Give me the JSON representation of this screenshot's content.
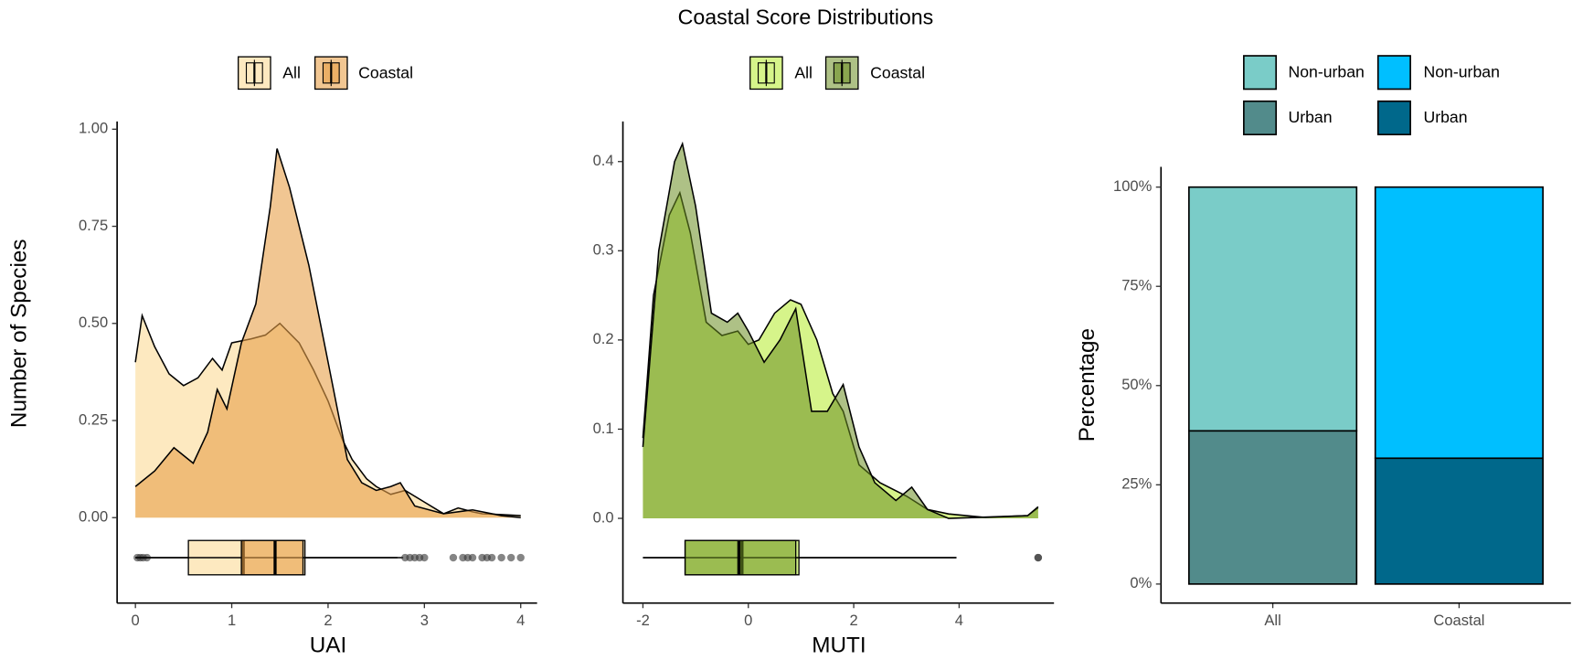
{
  "title": "Coastal Score Distributions",
  "chart_data": [
    {
      "type": "density",
      "x_label": "UAI",
      "y_label": "Number of Species",
      "xlim": [
        -0.19,
        4.17
      ],
      "ylim": [
        -0.22,
        1.02
      ],
      "xticks": [
        0,
        1,
        2,
        3,
        4
      ],
      "yticks": [
        {
          "value": 0,
          "label": "0.00"
        },
        0.25,
        {
          "value": 0.5,
          "label": "0.50"
        },
        0.75,
        {
          "value": 1,
          "label": "1.00"
        }
      ],
      "series": [
        {
          "name": "All",
          "color": "#fde9c0",
          "opacity": 1,
          "x": [
            0,
            0.07,
            0.2,
            0.35,
            0.5,
            0.65,
            0.8,
            0.9,
            1.0,
            1.2,
            1.35,
            1.5,
            1.7,
            1.85,
            2.0,
            2.15,
            2.25,
            2.4,
            2.5,
            2.65,
            2.8,
            3.0,
            3.2,
            3.35,
            3.5,
            3.6,
            3.8,
            4.0
          ],
          "values": [
            0.4,
            0.52,
            0.44,
            0.37,
            0.34,
            0.36,
            0.41,
            0.38,
            0.45,
            0.46,
            0.47,
            0.5,
            0.45,
            0.38,
            0.3,
            0.2,
            0.15,
            0.1,
            0.08,
            0.06,
            0.07,
            0.04,
            0.01,
            0.025,
            0.015,
            0.01,
            0.008,
            0.005
          ],
          "box": {
            "min": 0,
            "q1": 0.55,
            "median": 1.12,
            "q3": 1.76,
            "max": 2.78
          },
          "outliers": [
            0.02,
            0.05,
            0.08,
            0.12,
            2.8,
            2.85,
            2.9,
            2.95,
            3.0,
            3.3,
            3.4,
            3.45,
            3.5,
            3.6,
            3.65,
            3.7,
            3.8,
            3.9,
            4.0
          ]
        },
        {
          "name": "Coastal",
          "color": "#e8a04a",
          "opacity": 0.6,
          "x": [
            0,
            0.2,
            0.4,
            0.6,
            0.75,
            0.85,
            0.95,
            1.1,
            1.25,
            1.4,
            1.47,
            1.6,
            1.8,
            2.0,
            2.2,
            2.35,
            2.5,
            2.65,
            2.75,
            2.9,
            3.2,
            3.5,
            3.8,
            4.0
          ],
          "values": [
            0.08,
            0.12,
            0.18,
            0.14,
            0.22,
            0.33,
            0.28,
            0.45,
            0.55,
            0.8,
            0.95,
            0.85,
            0.65,
            0.4,
            0.15,
            0.09,
            0.07,
            0.08,
            0.09,
            0.03,
            0.01,
            0.02,
            0.005,
            0
          ],
          "box": {
            "min": 0,
            "q1": 1.1,
            "median": 1.45,
            "q3": 1.74,
            "max": 2.72
          },
          "outliers": []
        }
      ]
    },
    {
      "type": "density",
      "x_label": "MUTI",
      "xlim": [
        -2.38,
        5.8
      ],
      "ylim": [
        -0.095,
        0.445
      ],
      "xticks": [
        -2,
        0,
        2,
        4
      ],
      "yticks": [
        {
          "value": 0,
          "label": "0.0"
        },
        0.1,
        0.2,
        0.3,
        0.4
      ],
      "series": [
        {
          "name": "All",
          "color": "#d6f48a",
          "opacity": 1,
          "x": [
            -2,
            -1.8,
            -1.5,
            -1.3,
            -1.1,
            -0.8,
            -0.5,
            -0.2,
            0,
            0.2,
            0.5,
            0.8,
            1.0,
            1.3,
            1.6,
            1.8,
            2.1,
            2.5,
            3.0,
            3.4,
            3.8,
            4.5,
            5.3,
            5.5
          ],
          "values": [
            0.09,
            0.25,
            0.34,
            0.365,
            0.32,
            0.22,
            0.205,
            0.21,
            0.195,
            0.2,
            0.23,
            0.245,
            0.24,
            0.2,
            0.14,
            0.12,
            0.06,
            0.04,
            0.025,
            0.01,
            0.005,
            0.001,
            0.003,
            0.012
          ],
          "box": {
            "min": -2,
            "q1": -1.2,
            "median": -0.12,
            "q3": 0.96,
            "max": 3.95
          },
          "outliers": [
            5.5
          ]
        },
        {
          "name": "Coastal",
          "color": "#6b8e23",
          "opacity": 0.55,
          "x": [
            -2,
            -1.7,
            -1.4,
            -1.25,
            -1.0,
            -0.7,
            -0.4,
            -0.2,
            0,
            0.3,
            0.6,
            0.9,
            1.2,
            1.5,
            1.8,
            2.1,
            2.4,
            2.8,
            3.1,
            3.4,
            3.8,
            5.3,
            5.5
          ],
          "values": [
            0.08,
            0.3,
            0.4,
            0.42,
            0.35,
            0.23,
            0.22,
            0.23,
            0.21,
            0.175,
            0.2,
            0.235,
            0.12,
            0.12,
            0.15,
            0.08,
            0.04,
            0.02,
            0.035,
            0.01,
            0,
            0.003,
            0.013
          ],
          "box": {
            "min": -2,
            "q1": -1.2,
            "median": -0.18,
            "q3": 0.9,
            "max": 3.95
          },
          "outliers": [
            5.5
          ]
        }
      ]
    },
    {
      "type": "stacked_bar",
      "y_label": "Percentage",
      "categories": [
        "All",
        "Coastal"
      ],
      "ylim": [
        -4.8,
        105.1
      ],
      "yticks": [
        {
          "value": 0,
          "label": "0%"
        },
        {
          "value": 25,
          "label": "25%"
        },
        {
          "value": 50,
          "label": "50%"
        },
        {
          "value": 75,
          "label": "75%"
        },
        {
          "value": 100,
          "label": "100%"
        }
      ],
      "series": [
        {
          "name": "Urban",
          "color": "#528b8b",
          "values": [
            38.6,
            null
          ]
        },
        {
          "name": "Urban",
          "color": "#00688b",
          "values": [
            null,
            31.7
          ]
        },
        {
          "name": "Non-urban",
          "color": "#7accc8",
          "values": [
            61.4,
            null
          ]
        },
        {
          "name": "Non-urban",
          "color": "#00bfff",
          "values": [
            null,
            68.3
          ]
        }
      ]
    }
  ]
}
